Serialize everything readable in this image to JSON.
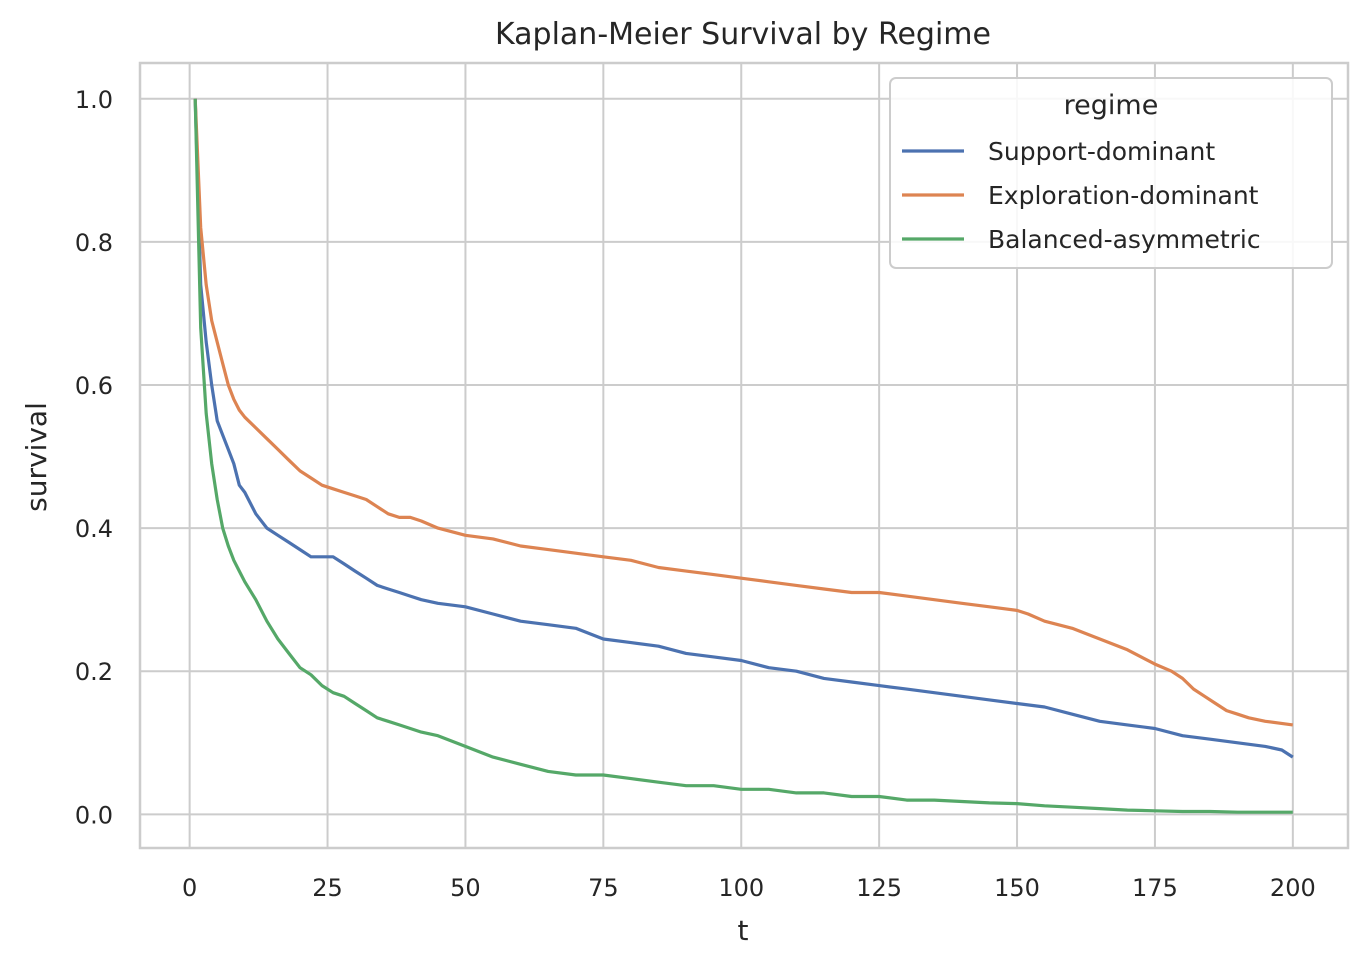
{
  "chart_data": {
    "type": "line",
    "title": "Kaplan-Meier Survival by Regime",
    "xlabel": "t",
    "ylabel": "survival",
    "xlim": [
      -9,
      210
    ],
    "ylim": [
      -0.047,
      1.05
    ],
    "xticks": [
      0,
      25,
      50,
      75,
      100,
      125,
      150,
      175,
      200
    ],
    "xtick_labels": [
      "0",
      "25",
      "50",
      "75",
      "100",
      "125",
      "150",
      "175",
      "200"
    ],
    "yticks": [
      0.0,
      0.2,
      0.4,
      0.6,
      0.8,
      1.0
    ],
    "ytick_labels": [
      "0.0",
      "0.2",
      "0.4",
      "0.6",
      "0.8",
      "1.0"
    ],
    "grid": true,
    "legend": {
      "title": "regime",
      "position": "top-right"
    },
    "series": [
      {
        "name": "Support-dominant",
        "color": "#4c72b0",
        "x": [
          1,
          2,
          3,
          4,
          5,
          6,
          7,
          8,
          9,
          10,
          12,
          14,
          16,
          18,
          20,
          22,
          24,
          26,
          28,
          30,
          32,
          34,
          36,
          38,
          40,
          42,
          45,
          50,
          55,
          60,
          65,
          70,
          75,
          80,
          85,
          90,
          95,
          100,
          105,
          110,
          115,
          120,
          125,
          130,
          135,
          140,
          145,
          150,
          155,
          160,
          165,
          170,
          175,
          180,
          185,
          190,
          195,
          198,
          200
        ],
        "y": [
          1.0,
          0.74,
          0.66,
          0.6,
          0.55,
          0.53,
          0.51,
          0.49,
          0.46,
          0.45,
          0.42,
          0.4,
          0.39,
          0.38,
          0.37,
          0.36,
          0.36,
          0.36,
          0.35,
          0.34,
          0.33,
          0.32,
          0.315,
          0.31,
          0.305,
          0.3,
          0.295,
          0.29,
          0.28,
          0.27,
          0.265,
          0.26,
          0.245,
          0.24,
          0.235,
          0.225,
          0.22,
          0.215,
          0.205,
          0.2,
          0.19,
          0.185,
          0.18,
          0.175,
          0.17,
          0.165,
          0.16,
          0.155,
          0.15,
          0.14,
          0.13,
          0.125,
          0.12,
          0.11,
          0.105,
          0.1,
          0.095,
          0.09,
          0.08
        ]
      },
      {
        "name": "Exploration-dominant",
        "color": "#dd8452",
        "x": [
          1,
          2,
          3,
          4,
          5,
          6,
          7,
          8,
          9,
          10,
          12,
          14,
          16,
          18,
          20,
          22,
          24,
          26,
          28,
          30,
          32,
          34,
          36,
          38,
          40,
          42,
          45,
          50,
          55,
          60,
          65,
          70,
          75,
          80,
          85,
          90,
          95,
          100,
          105,
          110,
          115,
          120,
          125,
          130,
          135,
          140,
          145,
          150,
          152,
          155,
          160,
          165,
          170,
          175,
          178,
          180,
          182,
          184,
          186,
          188,
          190,
          192,
          195,
          200
        ],
        "y": [
          1.0,
          0.82,
          0.74,
          0.69,
          0.66,
          0.63,
          0.6,
          0.58,
          0.565,
          0.555,
          0.54,
          0.525,
          0.51,
          0.495,
          0.48,
          0.47,
          0.46,
          0.455,
          0.45,
          0.445,
          0.44,
          0.43,
          0.42,
          0.415,
          0.415,
          0.41,
          0.4,
          0.39,
          0.385,
          0.375,
          0.37,
          0.365,
          0.36,
          0.355,
          0.345,
          0.34,
          0.335,
          0.33,
          0.325,
          0.32,
          0.315,
          0.31,
          0.31,
          0.305,
          0.3,
          0.295,
          0.29,
          0.285,
          0.28,
          0.27,
          0.26,
          0.245,
          0.23,
          0.21,
          0.2,
          0.19,
          0.175,
          0.165,
          0.155,
          0.145,
          0.14,
          0.135,
          0.13,
          0.125
        ]
      },
      {
        "name": "Balanced-asymmetric",
        "color": "#55a868",
        "x": [
          1,
          2,
          3,
          4,
          5,
          6,
          7,
          8,
          9,
          10,
          12,
          14,
          16,
          18,
          20,
          22,
          24,
          26,
          28,
          30,
          32,
          34,
          36,
          38,
          40,
          42,
          45,
          50,
          55,
          60,
          65,
          70,
          75,
          80,
          85,
          90,
          95,
          100,
          105,
          110,
          115,
          120,
          125,
          130,
          135,
          140,
          145,
          150,
          155,
          160,
          165,
          170,
          175,
          180,
          185,
          190,
          195,
          200
        ],
        "y": [
          1.0,
          0.68,
          0.56,
          0.49,
          0.44,
          0.4,
          0.375,
          0.355,
          0.34,
          0.325,
          0.3,
          0.27,
          0.245,
          0.225,
          0.205,
          0.195,
          0.18,
          0.17,
          0.165,
          0.155,
          0.145,
          0.135,
          0.13,
          0.125,
          0.12,
          0.115,
          0.11,
          0.095,
          0.08,
          0.07,
          0.06,
          0.055,
          0.055,
          0.05,
          0.045,
          0.04,
          0.04,
          0.035,
          0.035,
          0.03,
          0.03,
          0.025,
          0.025,
          0.02,
          0.02,
          0.018,
          0.016,
          0.015,
          0.012,
          0.01,
          0.008,
          0.006,
          0.005,
          0.004,
          0.004,
          0.003,
          0.003,
          0.003
        ]
      }
    ]
  }
}
